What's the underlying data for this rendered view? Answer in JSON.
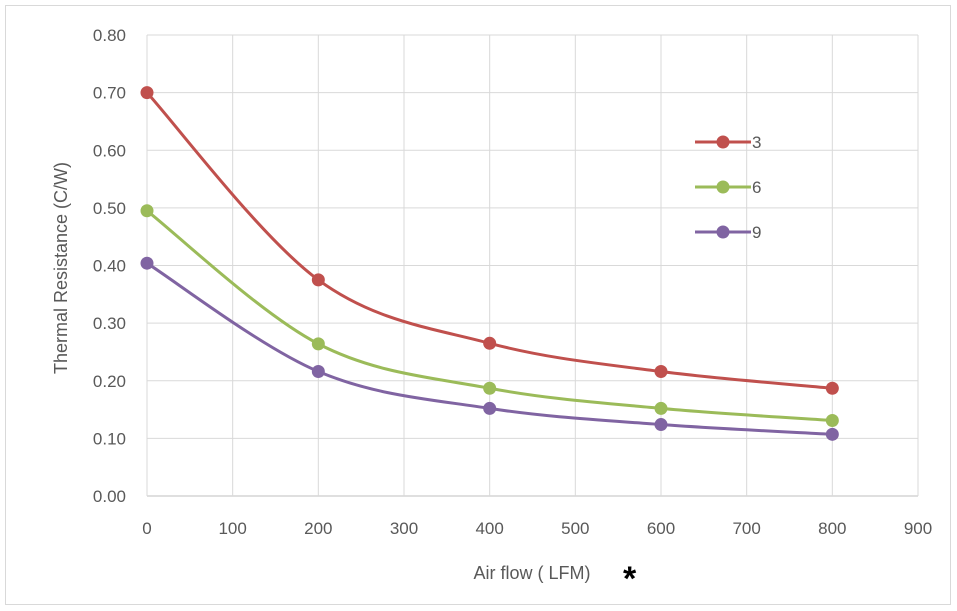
{
  "chart_data": {
    "type": "line",
    "title": "",
    "xlabel": "Air flow ( LFM)",
    "xlabel_marker": "*",
    "ylabel": "Thermal Resistance (C/W)",
    "xlim": [
      0,
      900
    ],
    "ylim": [
      0,
      0.8
    ],
    "x_ticks": [
      "0",
      "100",
      "200",
      "300",
      "400",
      "500",
      "600",
      "700",
      "800",
      "900"
    ],
    "y_ticks": [
      "0.00",
      "0.10",
      "0.20",
      "0.30",
      "0.40",
      "0.50",
      "0.60",
      "0.70",
      "0.80"
    ],
    "grid": true,
    "smooth": true,
    "legend_position": "right",
    "x": [
      0,
      200,
      400,
      600,
      800
    ],
    "series": [
      {
        "name": "3",
        "color": "#c0504d",
        "values": [
          0.7,
          0.375,
          0.265,
          0.216,
          0.187
        ]
      },
      {
        "name": "6",
        "color": "#9bbb59",
        "values": [
          0.495,
          0.264,
          0.187,
          0.152,
          0.131
        ]
      },
      {
        "name": "9",
        "color": "#8064a2",
        "values": [
          0.404,
          0.216,
          0.152,
          0.124,
          0.107
        ]
      }
    ]
  }
}
